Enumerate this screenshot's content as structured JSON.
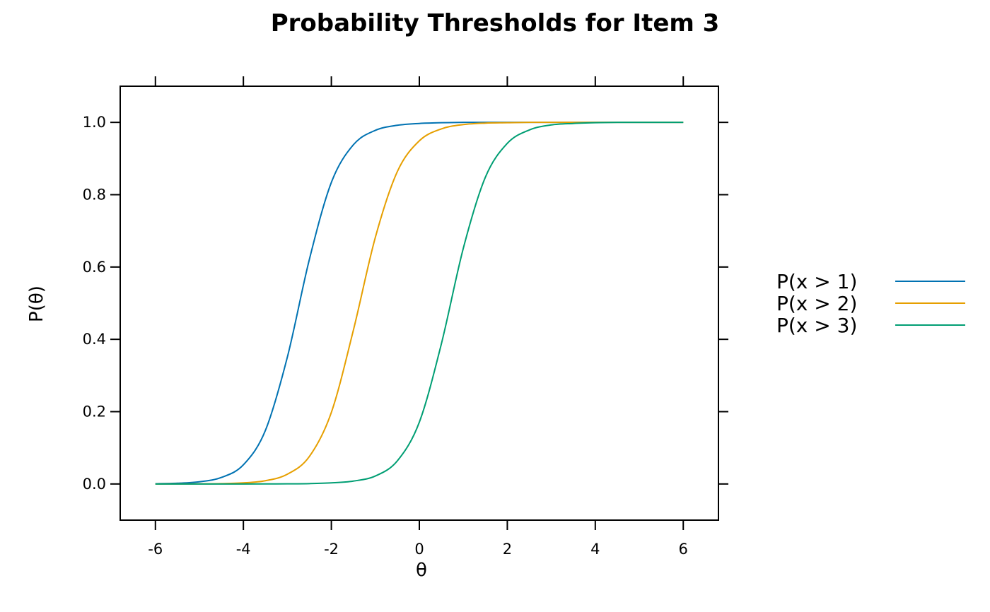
{
  "chart_data": {
    "type": "line",
    "title": "Probability Thresholds for Item 3",
    "xlabel": "θ",
    "ylabel": "P(θ)",
    "xlim": [
      -6.8,
      6.8
    ],
    "ylim": [
      -0.1,
      1.1
    ],
    "x_ticks": [
      "-6",
      "-4",
      "-2",
      "0",
      "2",
      "4",
      "6"
    ],
    "y_ticks": [
      "0.0",
      "0.2",
      "0.4",
      "0.6",
      "0.8",
      "1.0"
    ],
    "x": [
      -6,
      -5.5,
      -5,
      -4.5,
      -4,
      -3.5,
      -3,
      -2.5,
      -2,
      -1.5,
      -1,
      -0.5,
      0,
      0.5,
      1,
      1.5,
      2,
      2.5,
      3,
      3.5,
      4,
      4.5,
      5,
      5.5,
      6
    ],
    "series": [
      {
        "name": "P(x > 1)",
        "color": "#0072B2",
        "values": [
          0.0006,
          0.002,
          0.006,
          0.018,
          0.053,
          0.148,
          0.351,
          0.621,
          0.834,
          0.938,
          0.978,
          0.992,
          0.997,
          0.999,
          1.0,
          1.0,
          1.0,
          1.0,
          1.0,
          1.0,
          1.0,
          1.0,
          1.0,
          1.0,
          1.0
        ]
      },
      {
        "name": "P(x > 2)",
        "color": "#E69F00",
        "values": [
          0.0,
          0.0001,
          0.0003,
          0.001,
          0.003,
          0.009,
          0.027,
          0.076,
          0.198,
          0.425,
          0.682,
          0.864,
          0.949,
          0.982,
          0.994,
          0.998,
          0.999,
          1.0,
          1.0,
          1.0,
          1.0,
          1.0,
          1.0,
          1.0,
          1.0
        ]
      },
      {
        "name": "P(x > 3)",
        "color": "#009E73",
        "values": [
          0.0,
          0.0,
          0.0,
          0.0,
          0.0,
          0.0001,
          0.0004,
          0.001,
          0.003,
          0.008,
          0.022,
          0.064,
          0.171,
          0.387,
          0.652,
          0.848,
          0.942,
          0.979,
          0.993,
          0.997,
          0.999,
          1.0,
          1.0,
          1.0,
          1.0
        ]
      }
    ],
    "grid": false,
    "legend_position": "right"
  }
}
